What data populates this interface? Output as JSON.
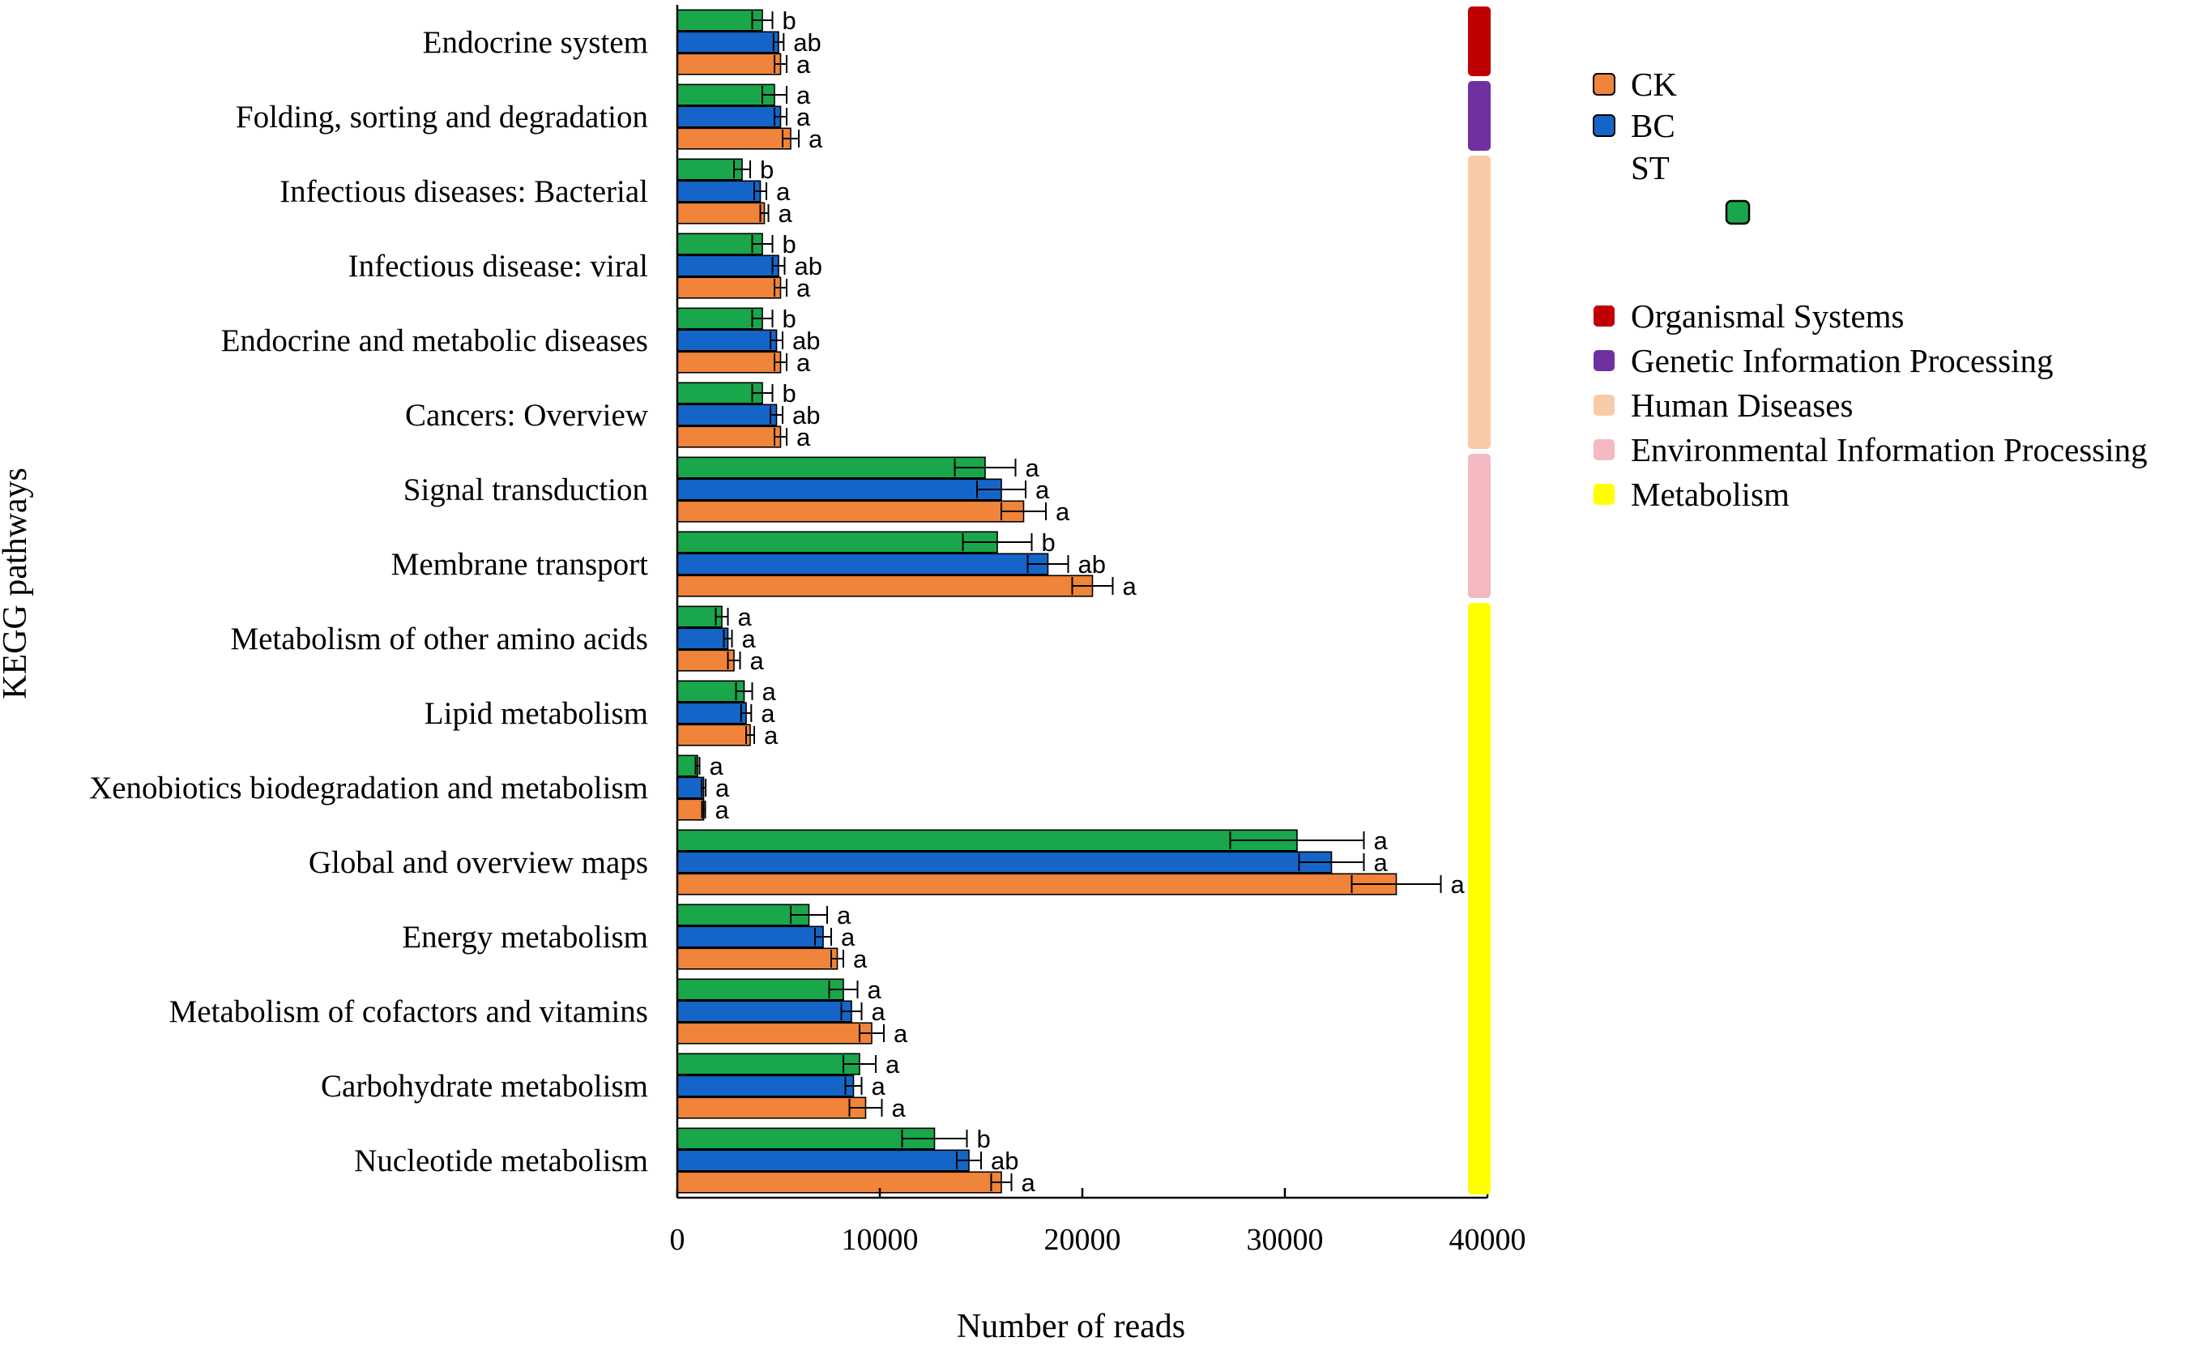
{
  "chart_data": {
    "type": "bar",
    "orientation": "horizontal",
    "title": "",
    "xlabel": "Number of reads",
    "ylabel": "KEGG pathways",
    "xlim": [
      0,
      40000
    ],
    "xticks": [
      0,
      10000,
      20000,
      30000,
      40000
    ],
    "xtick_labels": [
      "0",
      "10000",
      "20000",
      "30000",
      "40000"
    ],
    "grid": false,
    "categories": [
      "Endocrine system",
      "Folding, sorting and degradation",
      "Infectious diseases: Bacterial",
      "Infectious disease: viral",
      "Endocrine and metabolic diseases",
      "Cancers: Overview",
      "Signal transduction",
      "Membrane transport",
      "Metabolism of other amino acids",
      "Lipid metabolism",
      "Xenobiotics biodegradation and metabolism",
      "Global and overview maps",
      "Energy metabolism",
      "Metabolism of cofactors and vitamins",
      "Carbohydrate metabolism",
      "Nucleotide metabolism"
    ],
    "series": [
      {
        "name": "ST",
        "color": "#1aa64b",
        "values": [
          4200,
          4800,
          3200,
          4200,
          4200,
          4200,
          15200,
          15800,
          2200,
          3300,
          1000,
          30600,
          6500,
          8200,
          9000,
          12700
        ],
        "errors": [
          500,
          600,
          400,
          500,
          500,
          500,
          1500,
          1700,
          300,
          400,
          100,
          3300,
          900,
          700,
          800,
          1600
        ],
        "significance": [
          "b",
          "a",
          "b",
          "b",
          "b",
          "b",
          "a",
          "b",
          "a",
          "a",
          "a",
          "a",
          "a",
          "a",
          "a",
          "b"
        ]
      },
      {
        "name": "BC",
        "color": "#1565c8",
        "values": [
          5000,
          5100,
          4100,
          5000,
          4900,
          4900,
          16000,
          18300,
          2500,
          3400,
          1300,
          32300,
          7200,
          8600,
          8700,
          14400
        ],
        "errors": [
          250,
          300,
          300,
          300,
          300,
          300,
          1200,
          1000,
          200,
          250,
          100,
          1600,
          400,
          500,
          400,
          600
        ],
        "significance": [
          "ab",
          "a",
          "a",
          "ab",
          "ab",
          "ab",
          "a",
          "ab",
          "a",
          "a",
          "a",
          "a",
          "a",
          "a",
          "a",
          "ab"
        ]
      },
      {
        "name": "CK",
        "color": "#f0843a",
        "values": [
          5100,
          5600,
          4300,
          5100,
          5100,
          5100,
          17100,
          20500,
          2800,
          3600,
          1300,
          35500,
          7900,
          9600,
          9300,
          16000
        ],
        "errors": [
          300,
          400,
          200,
          300,
          300,
          300,
          1100,
          1000,
          300,
          200,
          80,
          2200,
          300,
          600,
          800,
          500
        ],
        "significance": [
          "a",
          "a",
          "a",
          "a",
          "a",
          "a",
          "a",
          "a",
          "a",
          "a",
          "a",
          "a",
          "a",
          "a",
          "a",
          "a"
        ]
      }
    ],
    "legend": {
      "placement": "right",
      "series_entries": [
        {
          "label": "CK",
          "color": "#f0843a"
        },
        {
          "label": "BC",
          "color": "#1565c8"
        },
        {
          "label": "ST",
          "color": "#1aa64b"
        }
      ],
      "group_entries": [
        {
          "label": "Organismal Systems",
          "color": "#c00000"
        },
        {
          "label": "Genetic Information Processing",
          "color": "#7030a0"
        },
        {
          "label": "Human Diseases",
          "color": "#f8cba8"
        },
        {
          "label": "Environmental Information Processing",
          "color": "#f4b9c1"
        },
        {
          "label": "Metabolism",
          "color": "#ffff00"
        }
      ]
    },
    "category_groups": [
      {
        "group": "Organismal Systems",
        "from": 0,
        "to": 0
      },
      {
        "group": "Genetic Information Processing",
        "from": 1,
        "to": 1
      },
      {
        "group": "Human Diseases",
        "from": 2,
        "to": 5
      },
      {
        "group": "Environmental Information Processing",
        "from": 6,
        "to": 7
      },
      {
        "group": "Metabolism",
        "from": 8,
        "to": 15
      }
    ]
  }
}
